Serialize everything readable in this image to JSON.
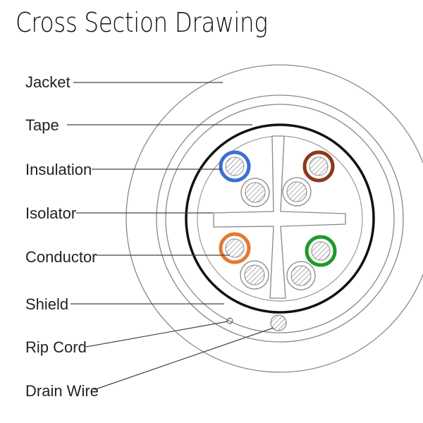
{
  "title": "Cross Section Drawing",
  "labels": {
    "jacket": "Jacket",
    "tape": "Tape",
    "insulation": "Insulation",
    "isolator": "Isolator",
    "conductor": "Conductor",
    "shield": "Shield",
    "rip_cord": "Rip Cord",
    "drain_wire": "Drain Wire"
  },
  "colors": {
    "pair_blue": "#3b6fd1",
    "pair_brown": "#8b3a1c",
    "pair_orange": "#e27a2e",
    "pair_green": "#1e9a2a",
    "shield": "#111111",
    "outline": "#777777"
  }
}
